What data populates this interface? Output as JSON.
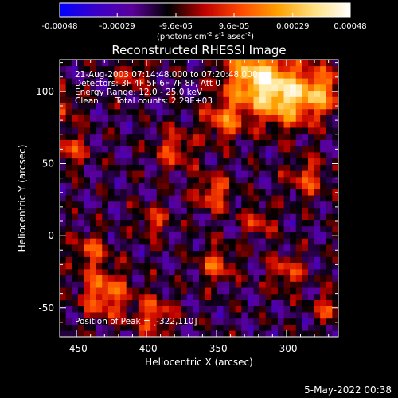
{
  "colorbar": {
    "ticks": [
      "-0.00048",
      "-0.00029",
      "-9.6e-05",
      "9.6e-05",
      "0.00029",
      "0.00048"
    ],
    "tick_values": [
      -0.00048,
      -0.00029,
      -9.6e-05,
      9.6e-05,
      0.00029,
      0.00048
    ],
    "units_prefix": "(photons cm",
    "units_sup1": "-2",
    "units_mid": " s",
    "units_sup2": "-1",
    "units_end": " asec",
    "units_sup3": "-2",
    "units_close": ")",
    "stops": [
      "#0000ff",
      "#3a00c8",
      "#5a009a",
      "#000000",
      "#c00000",
      "#ff4a00",
      "#ffa000",
      "#ffe080",
      "#ffffff"
    ]
  },
  "chart_data": {
    "type": "heatmap",
    "title": "Reconstructed RHESSI Image",
    "xlabel": "Heliocentric X (arcsec)",
    "ylabel": "Heliocentric Y (arcsec)",
    "xlim": [
      -462,
      -263
    ],
    "ylim": [
      -70,
      122
    ],
    "xticks": [
      -450,
      -400,
      -350,
      -300
    ],
    "xtick_labels": [
      "-450",
      "-400",
      "-350",
      "-300"
    ],
    "yticks": [
      -50,
      0,
      50,
      100
    ],
    "ytick_labels": [
      "-50",
      "0",
      "50",
      "100"
    ],
    "grid": false,
    "peak": [
      -322,
      110
    ],
    "grid_size": [
      46,
      45
    ],
    "annotations": {
      "time": "21-Aug-2003 07:14:48.000 to 07:20:48.000",
      "detectors": "Detectors: 3F 4F 5F 6F 7F 8F, Att 0",
      "energy": "Energy Range: 12.0 - 25.0 keV",
      "clean_label": "Clean",
      "counts": "Total counts: 2.29E+03",
      "peak_label": "Position of Peak = [-322,110]"
    }
  },
  "footer": {
    "date": "5-May-2022 00:38"
  }
}
